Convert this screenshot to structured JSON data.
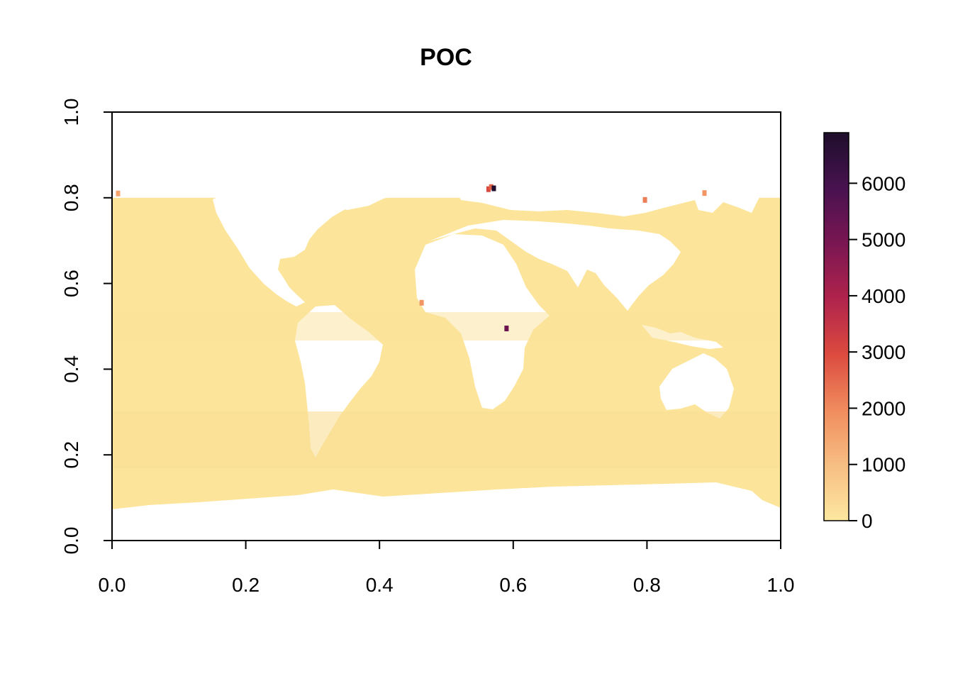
{
  "chart_data": {
    "type": "heatmap",
    "title": "POC",
    "xlabel": "",
    "ylabel": "",
    "xlim": [
      0,
      1
    ],
    "ylim": [
      0,
      1
    ],
    "x_ticks": [
      "0.0",
      "0.2",
      "0.4",
      "0.6",
      "0.8",
      "1.0"
    ],
    "y_ticks": [
      "0.0",
      "0.2",
      "0.4",
      "0.6",
      "0.8",
      "1.0"
    ],
    "x_tick_values": [
      0,
      0.2,
      0.4,
      0.6,
      0.8,
      1.0
    ],
    "y_tick_values": [
      0,
      0.2,
      0.4,
      0.6,
      0.8,
      1.0
    ],
    "data_extent_y": [
      0.065,
      0.8
    ],
    "grid": false,
    "colorbar": {
      "position": "right",
      "min": 0,
      "max": 6900,
      "ticks": [
        "0",
        "1000",
        "2000",
        "3000",
        "4000",
        "5000",
        "6000"
      ],
      "tick_values": [
        0,
        1000,
        2000,
        3000,
        4000,
        5000,
        6000
      ],
      "colors": [
        "#FDE8A0",
        "#F7BE82",
        "#F08C5E",
        "#DC4B3F",
        "#B0234C",
        "#7A1652",
        "#481250",
        "#1E0E2B"
      ]
    },
    "ocean_base_value": 150,
    "ocean_color": "#FCE59B",
    "land_color": "#FFFFFF",
    "hotspots": [
      {
        "x": 0.563,
        "y": 0.82,
        "value": 3000
      },
      {
        "x": 0.567,
        "y": 0.825,
        "value": 2600
      },
      {
        "x": 0.59,
        "y": 0.495,
        "value": 5200
      },
      {
        "x": 0.571,
        "y": 0.822,
        "value": 6800
      },
      {
        "x": 0.463,
        "y": 0.555,
        "value": 1800
      },
      {
        "x": 0.009,
        "y": 0.81,
        "value": 1500
      },
      {
        "x": 0.886,
        "y": 0.811,
        "value": 1800
      },
      {
        "x": 0.797,
        "y": 0.795,
        "value": 2200
      }
    ]
  }
}
